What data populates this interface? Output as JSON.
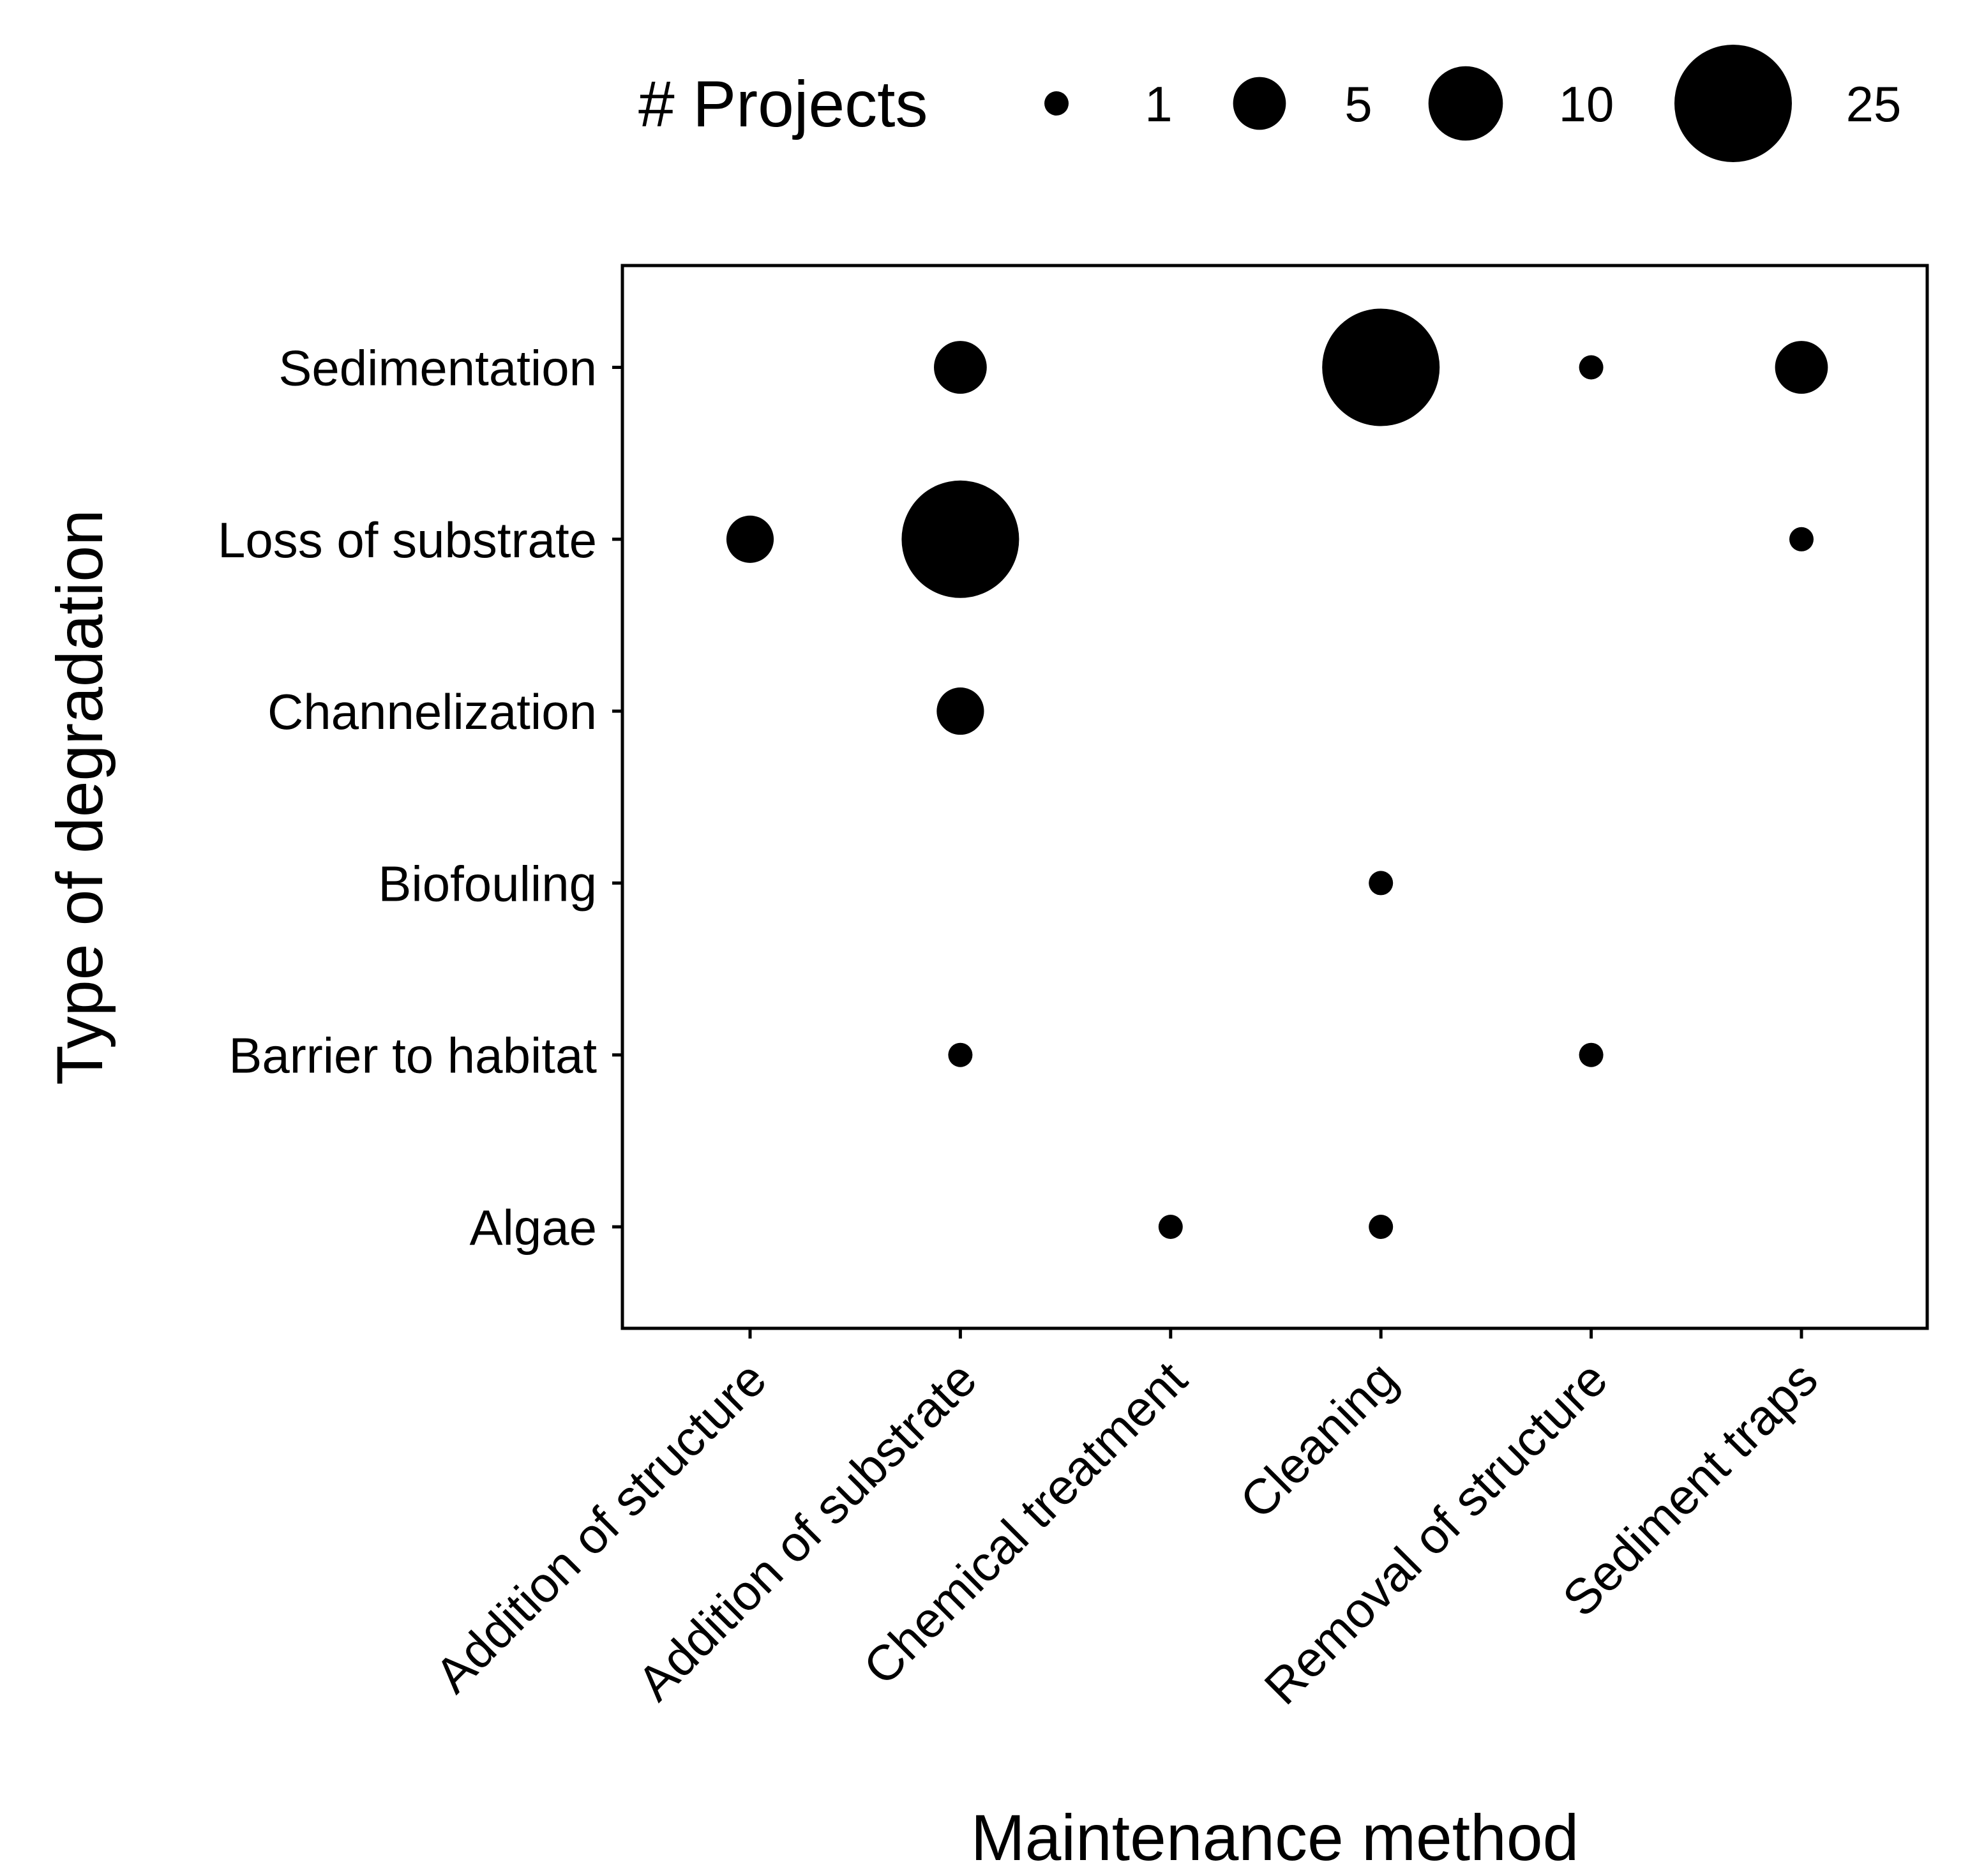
{
  "chart_data": {
    "type": "scatter",
    "subtype": "bubble",
    "xlabel": "Maintenance method",
    "ylabel": "Type of degradation",
    "x_categories": [
      "Addition of structure",
      "Addition of substrate",
      "Chemical treatment",
      "Cleaning",
      "Removal of structure",
      "Sediment traps"
    ],
    "y_categories": [
      "Algae",
      "Barrier to habitat",
      "Biofouling",
      "Channelization",
      "Loss of substrate",
      "Sedimentation"
    ],
    "points": [
      {
        "x": "Addition of substrate",
        "y": "Sedimentation",
        "projects": 5
      },
      {
        "x": "Cleaning",
        "y": "Sedimentation",
        "projects": 25
      },
      {
        "x": "Removal of structure",
        "y": "Sedimentation",
        "projects": 1
      },
      {
        "x": "Sediment traps",
        "y": "Sedimentation",
        "projects": 5
      },
      {
        "x": "Addition of structure",
        "y": "Loss of substrate",
        "projects": 4
      },
      {
        "x": "Addition of substrate",
        "y": "Loss of substrate",
        "projects": 25
      },
      {
        "x": "Sediment traps",
        "y": "Loss of substrate",
        "projects": 1
      },
      {
        "x": "Addition of substrate",
        "y": "Channelization",
        "projects": 4
      },
      {
        "x": "Cleaning",
        "y": "Biofouling",
        "projects": 1
      },
      {
        "x": "Addition of substrate",
        "y": "Barrier to habitat",
        "projects": 1
      },
      {
        "x": "Removal of structure",
        "y": "Barrier to habitat",
        "projects": 1
      },
      {
        "x": "Chemical treatment",
        "y": "Algae",
        "projects": 1
      },
      {
        "x": "Cleaning",
        "y": "Algae",
        "projects": 1
      }
    ],
    "legend": {
      "title": "# Projects",
      "position": "top",
      "entries": [
        {
          "label": "1",
          "value": 1
        },
        {
          "label": "5",
          "value": 5
        },
        {
          "label": "10",
          "value": 10
        },
        {
          "label": "25",
          "value": 25
        }
      ]
    },
    "grid": false,
    "point_color": "#000000"
  }
}
